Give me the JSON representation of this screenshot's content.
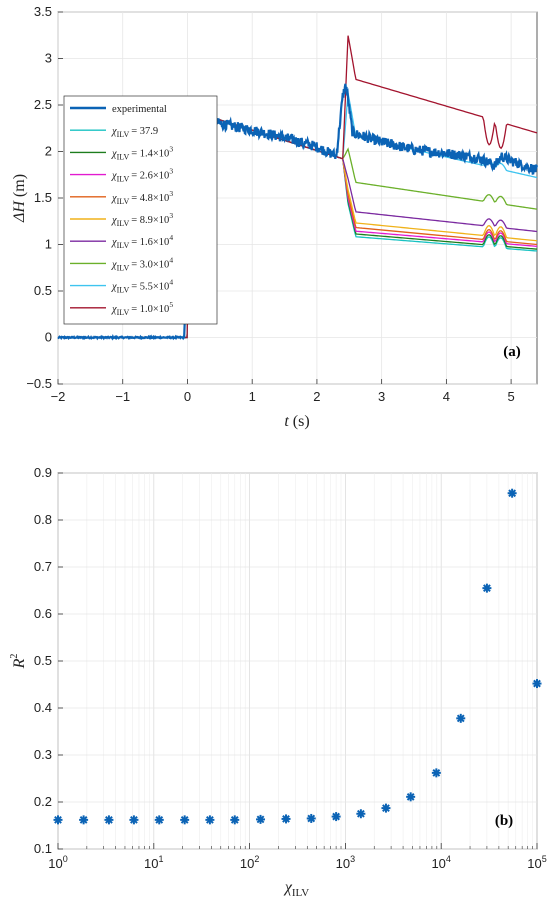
{
  "chart_data": [
    {
      "panel": "(a)",
      "type": "line",
      "xlabel_var": "t",
      "xlabel_unit": "(s)",
      "ylabel_var": "ΔH",
      "ylabel_unit": "(m)",
      "xlim": [
        -2,
        5.4
      ],
      "ylim": [
        -0.5,
        3.5
      ],
      "xticks": [
        -2,
        -1,
        0,
        1,
        2,
        3,
        4,
        5
      ],
      "yticks": [
        -0.5,
        0,
        0.5,
        1,
        1.5,
        2,
        2.5,
        3,
        3.5
      ],
      "grid": true,
      "legend_position": "left-middle",
      "t_step": 2.4,
      "t_step2": 4.75,
      "series": [
        {
          "name": "experimental",
          "legend_label": "experimental",
          "color": "#0b63b5",
          "values_desc": "measured head difference",
          "points": [
            [
              -2,
              0
            ],
            [
              -0.05,
              0
            ],
            [
              0.05,
              2.25
            ],
            [
              0.2,
              2.35
            ],
            [
              0.5,
              2.3
            ],
            [
              1,
              2.23
            ],
            [
              1.5,
              2.15
            ],
            [
              2,
              2.05
            ],
            [
              2.3,
              1.95
            ],
            [
              2.4,
              2.6
            ],
            [
              2.45,
              2.72
            ],
            [
              2.55,
              2.2
            ],
            [
              3,
              2.1
            ],
            [
              3.5,
              2.02
            ],
            [
              4,
              1.98
            ],
            [
              4.5,
              1.93
            ],
            [
              4.75,
              1.85
            ],
            [
              4.85,
              1.95
            ],
            [
              5,
              1.9
            ],
            [
              5.4,
              1.8
            ]
          ]
        },
        {
          "name": "χILV = 37.9",
          "legend_label": "= 37.9",
          "color": "#19c2c2",
          "after_step": 1.09,
          "end": 0.93,
          "bump": 0.14
        },
        {
          "name": "χILV = 1.4×10^3",
          "legend_label": "= 1.4×10",
          "exp": "3",
          "color": "#1e7d1e",
          "after_step": 1.12,
          "end": 0.95,
          "bump": 0.14
        },
        {
          "name": "χILV = 2.6×10^3",
          "legend_label": "= 2.6×10",
          "exp": "3",
          "color": "#e21ad0",
          "after_step": 1.15,
          "end": 0.98,
          "bump": 0.14
        },
        {
          "name": "χILV = 4.8×10^3",
          "legend_label": "= 4.8×10",
          "exp": "3",
          "color": "#e0601a",
          "after_step": 1.19,
          "end": 1.0,
          "bump": 0.14
        },
        {
          "name": "χILV = 8.9×10^3",
          "legend_label": "= 8.9×10",
          "exp": "3",
          "color": "#f0b21a",
          "after_step": 1.24,
          "end": 1.04,
          "bump": 0.14
        },
        {
          "name": "χILV = 1.6×10^4",
          "legend_label": "= 1.6×10",
          "exp": "4",
          "color": "#7b2aa0",
          "after_step": 1.36,
          "end": 1.14,
          "bump": 0.1
        },
        {
          "name": "χILV = 3.0×10^4",
          "legend_label": "= 3.0×10",
          "exp": "4",
          "color": "#6bb02a",
          "after_step": 1.68,
          "end": 1.38,
          "bump": 0.1
        },
        {
          "name": "χILV = 5.5×10^4",
          "legend_label": "= 5.5×10",
          "exp": "4",
          "color": "#3ec4ef",
          "after_step": 2.18,
          "end": 1.72,
          "bump": 0.08
        },
        {
          "name": "χILV = 1.0×10^5",
          "legend_label": "= 1.0×10",
          "exp": "5",
          "color": "#a3142e",
          "after_step": 2.8,
          "end": 2.2,
          "bump": 0.35
        }
      ],
      "legend_symbol": "χ",
      "legend_sub": "ILV"
    },
    {
      "panel": "(b)",
      "type": "scatter",
      "xscale": "log",
      "xlabel_var": "χ",
      "xlabel_sub": "ILV",
      "ylabel_var": "R",
      "ylabel_sup": "2",
      "xlim": [
        1,
        100000
      ],
      "ylim": [
        0.1,
        0.9
      ],
      "xticks_exp": [
        0,
        1,
        2,
        3,
        4,
        5
      ],
      "yticks": [
        0.1,
        0.2,
        0.3,
        0.4,
        0.5,
        0.6,
        0.7,
        0.8,
        0.9
      ],
      "grid": true,
      "marker": "*",
      "color": "#0b63b5",
      "x": [
        1,
        1.85,
        3.4,
        6.2,
        11.4,
        21,
        38.5,
        70,
        130,
        240,
        440,
        800,
        1450,
        2650,
        4800,
        8900,
        16000,
        30000,
        55000,
        100000
      ],
      "y": [
        0.162,
        0.162,
        0.162,
        0.162,
        0.162,
        0.162,
        0.162,
        0.162,
        0.163,
        0.164,
        0.165,
        0.169,
        0.175,
        0.187,
        0.211,
        0.262,
        0.378,
        0.655,
        0.857,
        0.452
      ]
    }
  ]
}
